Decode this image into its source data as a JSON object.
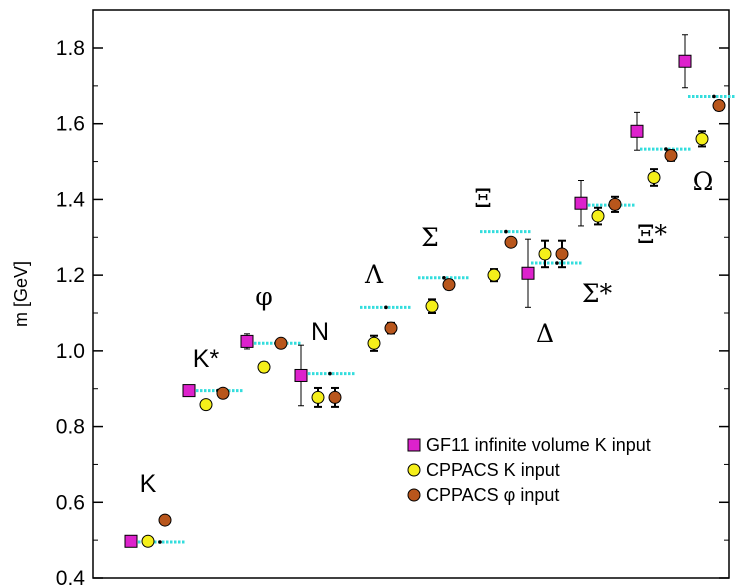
{
  "chart_data": {
    "type": "scatter",
    "ylabel": "m [GeV]",
    "xlabel": "",
    "ylim": [
      0.4,
      1.9
    ],
    "yticks": [
      0.4,
      0.6,
      0.8,
      1.0,
      1.2,
      1.4,
      1.6,
      1.8
    ],
    "ytick_labels": [
      "0.4",
      "0.6",
      "0.8",
      "1.0",
      "1.2",
      "1.4",
      "1.6",
      "1.8"
    ],
    "categories": [
      "K",
      "K*",
      "φ",
      "N",
      "Λ",
      "Σ",
      "Ξ",
      "Δ",
      "Σ*",
      "Ξ*",
      "Ω"
    ],
    "experiment": [
      0.495,
      0.895,
      1.02,
      0.94,
      1.115,
      1.193,
      1.315,
      1.232,
      1.385,
      1.533,
      1.672
    ],
    "series": [
      {
        "name": "GF11 infinite volume K input",
        "marker": "square",
        "color": "#dd22cc",
        "points": [
          {
            "category": "K",
            "y": 0.497,
            "err": 0
          },
          {
            "category": "K*",
            "y": 0.895,
            "err": 0
          },
          {
            "category": "φ",
            "y": 1.025,
            "err": 0.02
          },
          {
            "category": "N",
            "y": 0.935,
            "err": 0.08
          },
          {
            "category": "Δ",
            "y": 1.205,
            "err": 0.09
          },
          {
            "category": "Σ*",
            "y": 1.39,
            "err": 0.06
          },
          {
            "category": "Ξ*",
            "y": 1.58,
            "err": 0.05
          },
          {
            "category": "Ω",
            "y": 1.765,
            "err": 0.07
          }
        ]
      },
      {
        "name": "CPPACS K input",
        "marker": "circle",
        "color": "#f5ef1a",
        "points": [
          {
            "category": "K",
            "y": 0.497,
            "err": 0
          },
          {
            "category": "K*",
            "y": 0.858,
            "err": 0.008
          },
          {
            "category": "φ",
            "y": 0.957,
            "err": 0.012
          },
          {
            "category": "N",
            "y": 0.877,
            "err": 0.025
          },
          {
            "category": "Λ",
            "y": 1.02,
            "err": 0.02
          },
          {
            "category": "Σ",
            "y": 1.118,
            "err": 0.018
          },
          {
            "category": "Ξ",
            "y": 1.2,
            "err": 0.016
          },
          {
            "category": "Δ",
            "y": 1.256,
            "err": 0.035
          },
          {
            "category": "Σ*",
            "y": 1.356,
            "err": 0.022
          },
          {
            "category": "Ξ*",
            "y": 1.458,
            "err": 0.022
          },
          {
            "category": "Ω",
            "y": 1.56,
            "err": 0.02
          }
        ]
      },
      {
        "name": "CPPACS   φ input",
        "marker": "circle",
        "color": "#b8561c",
        "points": [
          {
            "category": "K",
            "y": 0.553,
            "err": 0
          },
          {
            "category": "K*",
            "y": 0.888,
            "err": 0.008
          },
          {
            "category": "φ",
            "y": 1.02,
            "err": 0
          },
          {
            "category": "N",
            "y": 0.877,
            "err": 0.025
          },
          {
            "category": "Λ",
            "y": 1.06,
            "err": 0.014
          },
          {
            "category": "Σ",
            "y": 1.175,
            "err": 0.012
          },
          {
            "category": "Ξ",
            "y": 1.287,
            "err": 0.01
          },
          {
            "category": "Δ",
            "y": 1.256,
            "err": 0.035
          },
          {
            "category": "Σ*",
            "y": 1.387,
            "err": 0.02
          },
          {
            "category": "Ξ*",
            "y": 1.516,
            "err": 0.014
          },
          {
            "category": "Ω",
            "y": 1.648,
            "err": 0.012
          }
        ]
      }
    ],
    "legend_position": "bottom-right",
    "grid": false
  }
}
